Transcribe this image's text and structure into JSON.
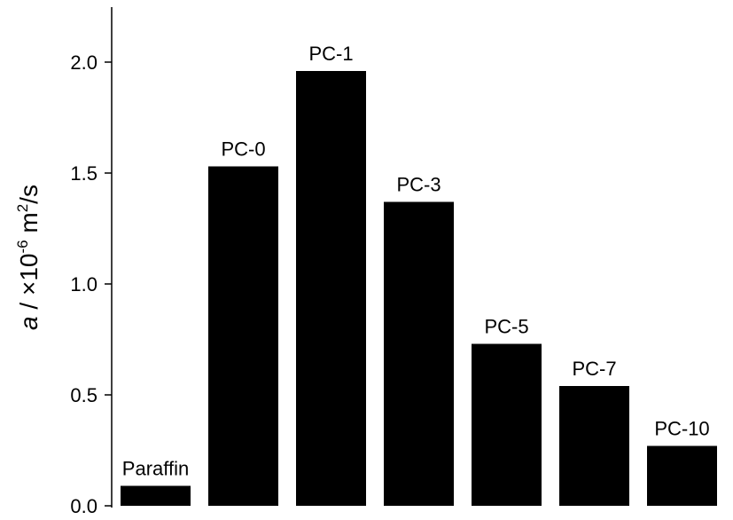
{
  "chart_data": {
    "type": "bar",
    "categories": [
      "Paraffin",
      "PC-0",
      "PC-1",
      "PC-3",
      "PC-5",
      "PC-7",
      "PC-10"
    ],
    "values": [
      0.09,
      1.53,
      1.96,
      1.37,
      0.73,
      0.54,
      0.27
    ],
    "title": "",
    "xlabel": "",
    "ylabel": {
      "symbol": "a",
      "separator": " / ",
      "multiply": "×",
      "base": "10",
      "exponent": "-6",
      "unit_prefix": " m",
      "unit_exponent": "2",
      "unit_suffix": "/s"
    },
    "ylim": [
      0,
      2.2
    ],
    "yticks": [
      0.0,
      0.5,
      1.0,
      1.5,
      2.0
    ],
    "ytick_labels": [
      "0.0",
      "0.5",
      "1.0",
      "1.5",
      "2.0"
    ],
    "bar_color": "#000000",
    "bar_labels": true,
    "grid": false,
    "legend": "none"
  }
}
